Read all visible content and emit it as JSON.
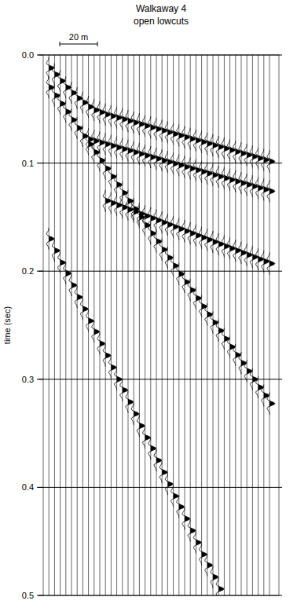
{
  "chart_data": {
    "type": "wiggle",
    "title": "Walkaway 4",
    "subtitle": "open lowcuts",
    "y_label": "time (sec)",
    "x": [
      0,
      3,
      6,
      9,
      12,
      15,
      18,
      21,
      24,
      27,
      30,
      33,
      36,
      39,
      42,
      45,
      48,
      51,
      54,
      57,
      60,
      63,
      66,
      69,
      72,
      75,
      78,
      81,
      84,
      87,
      90,
      93,
      96,
      99,
      102,
      105,
      108,
      111,
      114,
      117
    ],
    "xlim": [
      -3,
      122
    ],
    "ylim": [
      0,
      0.5
    ],
    "yticks": [
      {
        "value": 0,
        "label": "0.0"
      },
      0.1,
      0.2,
      0.3,
      0.4,
      0.5
    ],
    "grid": true,
    "tick_labels": "y",
    "scale_bar": {
      "length": 20,
      "label": "20 m"
    },
    "series": [
      {
        "color": "#000000",
        "values": [
          0.012,
          0.018,
          0.024,
          0.03,
          0.035,
          0.04,
          0.044,
          0.048,
          0.051,
          0.053,
          0.055,
          0.0565,
          0.058,
          0.0595,
          0.061,
          0.0625,
          0.064,
          0.0655,
          0.067,
          0.0685,
          0.07,
          0.0715,
          0.073,
          0.0745,
          0.076,
          0.0775,
          0.079,
          0.0805,
          0.082,
          0.0835,
          0.085,
          0.0865,
          0.088,
          0.0895,
          0.091,
          0.0925,
          0.094,
          0.0955,
          0.097,
          0.0985
        ]
      },
      {
        "color": "#000000",
        "values": [
          null,
          null,
          null,
          null,
          null,
          null,
          null,
          0.078,
          0.0795,
          0.081,
          0.0825,
          0.084,
          0.0855,
          0.087,
          0.0885,
          0.09,
          0.0915,
          0.093,
          0.0945,
          0.096,
          0.0975,
          0.099,
          0.1005,
          0.102,
          0.1035,
          0.105,
          0.1065,
          0.108,
          0.1095,
          0.111,
          0.1125,
          0.114,
          0.1155,
          0.117,
          0.1185,
          0.12,
          0.1215,
          0.123,
          0.1245,
          0.126
        ]
      },
      {
        "color": "#000000",
        "values": [
          null,
          null,
          null,
          null,
          null,
          null,
          null,
          null,
          null,
          null,
          0.135,
          0.137,
          0.139,
          0.141,
          0.143,
          0.145,
          0.147,
          0.149,
          0.151,
          0.153,
          0.155,
          0.157,
          0.159,
          0.161,
          0.163,
          0.165,
          0.167,
          0.169,
          0.171,
          0.173,
          0.175,
          0.177,
          0.179,
          0.181,
          0.183,
          0.185,
          0.187,
          0.189,
          0.191,
          0.193
        ]
      },
      {
        "color": "#000000",
        "values": [
          0.03,
          0.0375,
          0.045,
          0.0525,
          0.06,
          0.0675,
          0.075,
          0.0825,
          0.09,
          0.0975,
          0.105,
          0.1125,
          0.12,
          0.1275,
          0.135,
          0.1425,
          0.15,
          0.1575,
          0.165,
          0.1725,
          0.18,
          0.1875,
          0.195,
          0.2025,
          0.21,
          0.2175,
          0.225,
          0.2325,
          0.24,
          0.2475,
          0.255,
          0.2625,
          0.27,
          0.2775,
          0.285,
          0.2925,
          0.3,
          0.3075,
          0.315,
          0.3225
        ]
      },
      {
        "color": "#000000",
        "values": [
          0.17,
          0.181,
          0.192,
          0.202,
          0.213,
          0.224,
          0.235,
          0.246,
          0.256,
          0.267,
          0.278,
          0.289,
          0.3,
          0.31,
          0.321,
          0.332,
          0.343,
          0.354,
          0.364,
          0.375,
          0.386,
          0.397,
          0.408,
          0.418,
          0.429,
          0.44,
          0.451,
          0.462,
          0.472,
          0.483,
          0.494,
          null,
          null,
          null,
          null,
          null,
          null,
          null,
          null,
          null
        ]
      }
    ]
  }
}
